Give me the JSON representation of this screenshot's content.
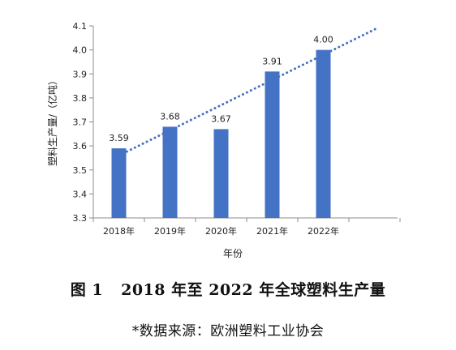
{
  "chart_data": {
    "type": "bar",
    "categories": [
      "2018年",
      "2019年",
      "2020年",
      "2021年",
      "2022年"
    ],
    "values": [
      3.59,
      3.68,
      3.67,
      3.91,
      4.0
    ],
    "data_labels": [
      "3.59",
      "3.68",
      "3.67",
      "3.91",
      "4.00"
    ],
    "xlabel": "年份",
    "ylabel": "塑料生产量/（亿吨）",
    "ylim": [
      3.3,
      4.1
    ],
    "yticks": [
      "3.3",
      "3.4",
      "3.5",
      "3.6",
      "3.7",
      "3.8",
      "3.9",
      "4.0",
      "4.1"
    ],
    "trendline": "linear",
    "grid": false,
    "legend": "none",
    "bar_color": "#4472C4",
    "trend_color": "#4472C4"
  },
  "caption": {
    "figure_label": "图 1",
    "title": "2018 年至 2022 年全球塑料生产量",
    "source": "*数据来源：欧洲塑料工业协会"
  }
}
